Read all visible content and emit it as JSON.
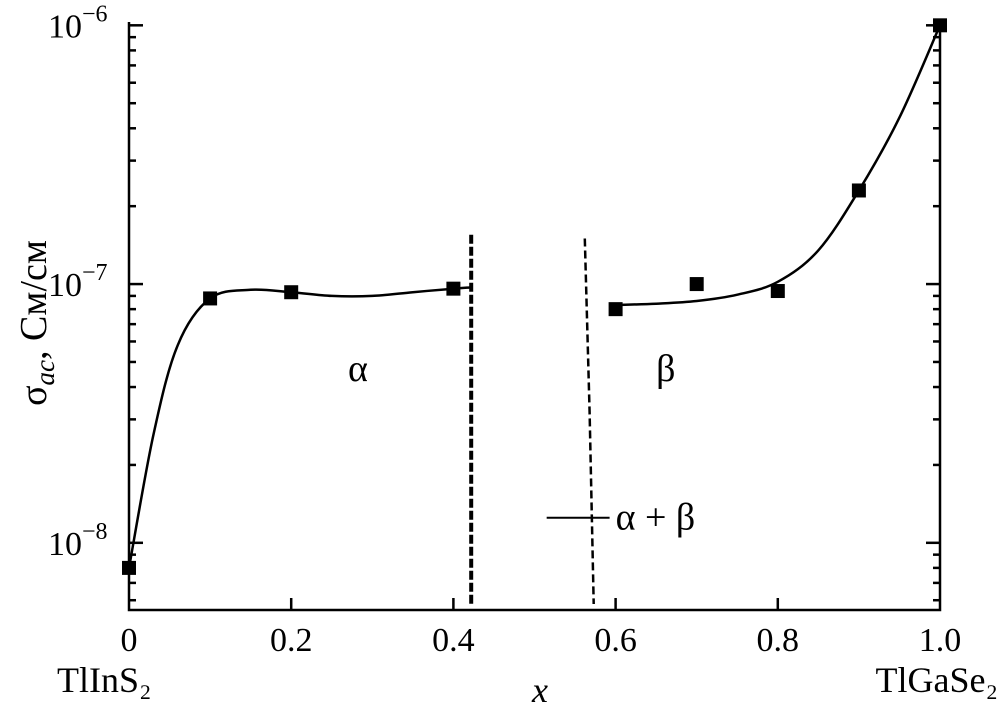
{
  "chart_data": {
    "type": "scatter",
    "x_axis": {
      "label": "x",
      "range": [
        0,
        1.0
      ],
      "ticks": [
        0,
        0.2,
        0.4,
        0.6,
        0.8,
        1.0
      ],
      "tick_labels": [
        "0",
        "0.2",
        "0.4",
        "0.6",
        "0.8",
        "1.0"
      ],
      "left_endpoint_label": "TlInS₂",
      "right_endpoint_label": "TlGaSe₂"
    },
    "y_axis": {
      "label": "σac, См/см",
      "label_symbol": "σ",
      "label_subscript": "ac",
      "label_units": ", См/см",
      "scale": "log",
      "range": [
        5.5e-09,
        1.03e-06
      ],
      "ticks": [
        1e-08,
        1e-07,
        1e-06
      ],
      "tick_labels": [
        "10⁻⁸",
        "10⁻⁷",
        "10⁻⁶"
      ],
      "tick_base": "10",
      "tick_exponents": [
        "−8",
        "−7",
        "−6"
      ]
    },
    "grid": false,
    "series": [
      {
        "region": "α",
        "points": [
          {
            "x": 0.0,
            "y": 8e-09
          },
          {
            "x": 0.1,
            "y": 8.8e-08
          },
          {
            "x": 0.2,
            "y": 9.3e-08
          },
          {
            "x": 0.4,
            "y": 9.6e-08
          }
        ]
      },
      {
        "region": "β",
        "points": [
          {
            "x": 0.6,
            "y": 8e-08
          },
          {
            "x": 0.7,
            "y": 1e-07
          },
          {
            "x": 0.8,
            "y": 9.4e-08
          },
          {
            "x": 0.9,
            "y": 2.3e-07
          },
          {
            "x": 1.0,
            "y": 1e-06
          }
        ]
      }
    ],
    "fit_curves": [
      [
        [
          0.0,
          8e-09
        ],
        [
          0.03,
          2.6e-08
        ],
        [
          0.06,
          5.8e-08
        ],
        [
          0.1,
          8.8e-08
        ],
        [
          0.15,
          9.5e-08
        ],
        [
          0.2,
          9.3e-08
        ],
        [
          0.25,
          9e-08
        ],
        [
          0.3,
          9e-08
        ],
        [
          0.35,
          9.3e-08
        ],
        [
          0.4,
          9.6e-08
        ],
        [
          0.42,
          9.7e-08
        ]
      ],
      [
        [
          0.6,
          8.3e-08
        ],
        [
          0.65,
          8.4e-08
        ],
        [
          0.7,
          8.6e-08
        ],
        [
          0.75,
          9.1e-08
        ],
        [
          0.8,
          1.02e-07
        ],
        [
          0.85,
          1.35e-07
        ],
        [
          0.9,
          2.3e-07
        ],
        [
          0.95,
          4.4e-07
        ],
        [
          1.0,
          1e-06
        ]
      ]
    ],
    "phase_boundaries": [
      {
        "points": [
          [
            0.422,
            1.55e-07
          ],
          [
            0.422,
            5.7e-09
          ]
        ]
      },
      {
        "points": [
          [
            0.562,
            1.5e-07
          ],
          [
            0.568,
            3.2e-08
          ],
          [
            0.573,
            5.8e-09
          ]
        ]
      }
    ],
    "annotations": [
      {
        "text": "α",
        "x": 0.27,
        "y": 4.7e-08
      },
      {
        "text": "β",
        "x": 0.65,
        "y": 4.7e-08
      },
      {
        "text": "α + β",
        "x": 0.6,
        "y": 1.25e-08,
        "pointer_from_x": 0.515
      }
    ]
  }
}
